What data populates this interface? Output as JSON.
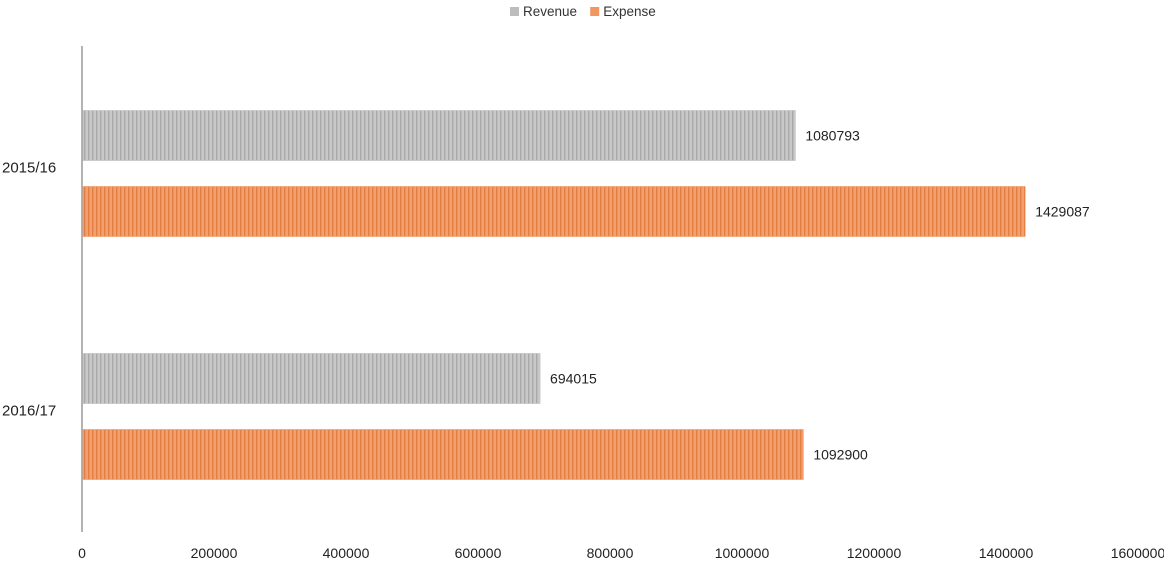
{
  "chart_data": {
    "type": "bar",
    "orientation": "horizontal",
    "categories": [
      "2015/16",
      "2016/17"
    ],
    "series": [
      {
        "name": "Revenue",
        "values": [
          1080793,
          694015
        ],
        "color": "#bdbdbd"
      },
      {
        "name": "Expense",
        "values": [
          1429087,
          1092900
        ],
        "color": "#f0965e"
      }
    ],
    "data_labels": [
      [
        "1080793",
        "1429087"
      ],
      [
        "694015",
        "1092900"
      ]
    ],
    "xlim": [
      0,
      1600000
    ],
    "x_ticks": [
      0,
      200000,
      400000,
      600000,
      800000,
      1000000,
      1200000,
      1400000,
      1600000
    ],
    "x_tick_labels": [
      "0",
      "200000",
      "400000",
      "600000",
      "800000",
      "1000000",
      "1200000",
      "1400000",
      "1600000"
    ],
    "title": "",
    "xlabel": "",
    "ylabel": "",
    "legend_position": "top",
    "grid": false
  }
}
